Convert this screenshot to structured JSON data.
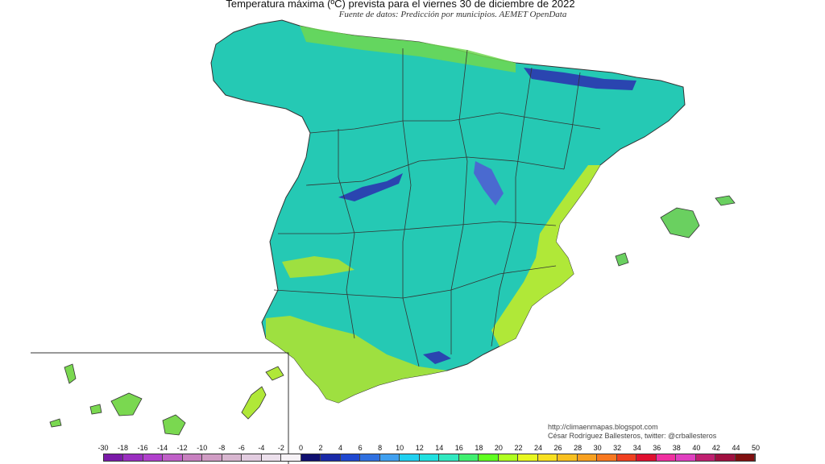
{
  "title": "Temperatura máxima (ºC) prevista para el viernes 30 de diciembre de 2022",
  "subtitle": "Fuente de datos: Predicción por municipios. AEMET OpenData",
  "credits": {
    "line1": "http://climaenmapas.blogspot.com",
    "line2": "César Rodríguez Ballesteros, twitter: @crballesteros"
  },
  "legend": {
    "labels": [
      "-30",
      "-18",
      "-16",
      "-14",
      "-12",
      "-10",
      "-8",
      "-6",
      "-4",
      "-2",
      "0",
      "2",
      "4",
      "6",
      "8",
      "10",
      "12",
      "14",
      "16",
      "18",
      "20",
      "22",
      "24",
      "26",
      "28",
      "30",
      "32",
      "34",
      "36",
      "38",
      "40",
      "42",
      "44",
      "50"
    ],
    "colors": [
      "#7a1aa8",
      "#9a2ec0",
      "#b040cc",
      "#c060c8",
      "#c880c0",
      "#d09cc4",
      "#d8b6d0",
      "#e2cce0",
      "#ece0ec",
      "#f6f2f6",
      "#101070",
      "#1a2aa8",
      "#2048d0",
      "#3070e0",
      "#40a0f0",
      "#20d0f0",
      "#20e0e0",
      "#30e8c0",
      "#40f070",
      "#60ff20",
      "#b0ff20",
      "#e8f820",
      "#f8e020",
      "#f8c020",
      "#f8a020",
      "#f87820",
      "#f04020",
      "#e01030",
      "#f030a0",
      "#e040c0",
      "#c02070",
      "#a01040",
      "#801010"
    ]
  },
  "map": {
    "regions": [
      {
        "name": "peninsula",
        "fill": "#25c9b4"
      },
      {
        "name": "balearic-islands",
        "fill": "#6ad060"
      },
      {
        "name": "canary-islands",
        "fill": "#7ad850"
      }
    ],
    "colors": {
      "land": "#25c9b4",
      "mountain_cold": "#2a45b0",
      "interior_cool": "#3ad8d0",
      "coast_warm": "#b0e838",
      "coast_green": "#70d850",
      "border": "#333333"
    }
  }
}
